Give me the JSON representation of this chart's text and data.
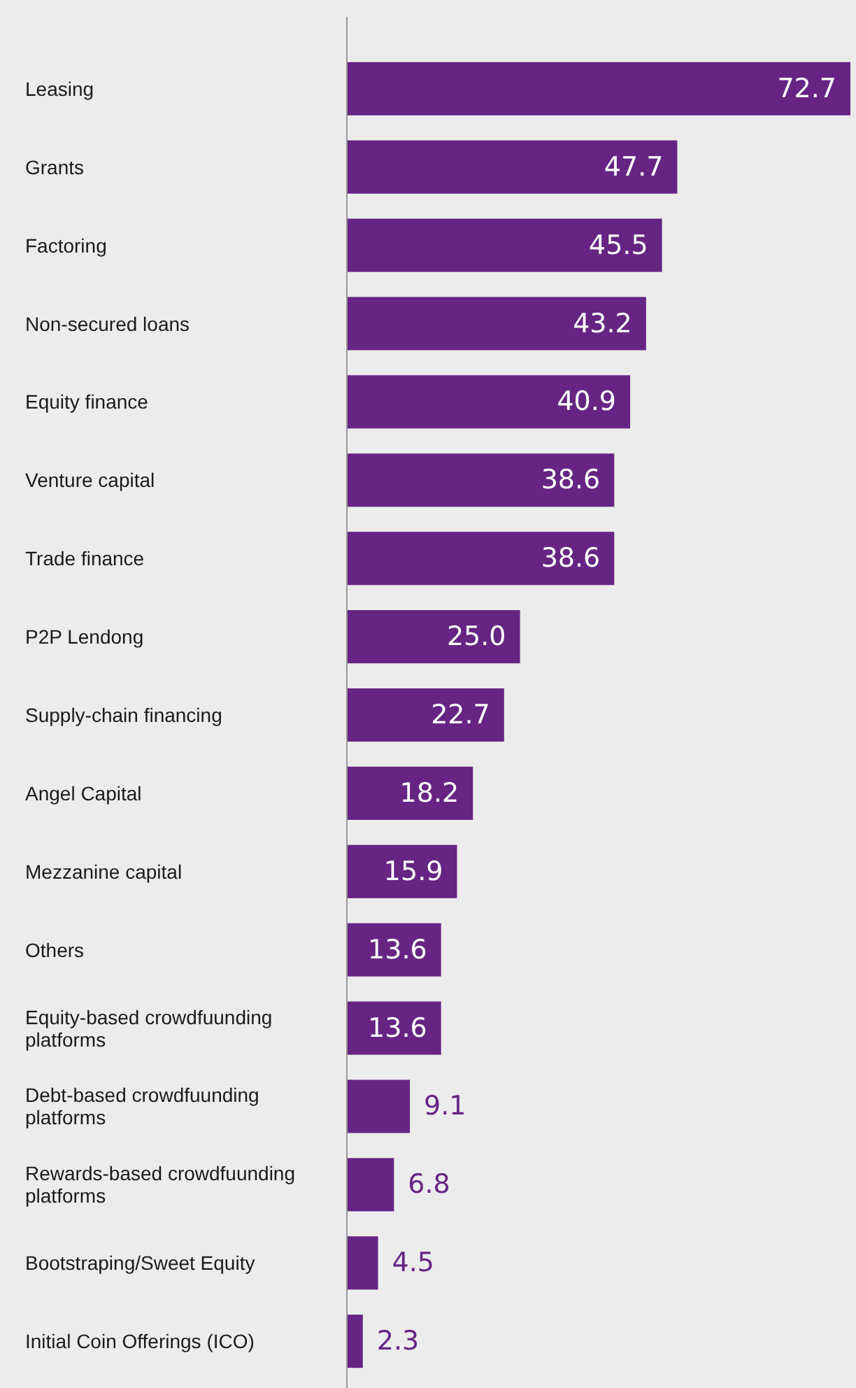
{
  "chart_data": {
    "type": "bar",
    "orientation": "horizontal",
    "categories": [
      "Leasing",
      "Grants",
      "Factoring",
      "Non-secured loans",
      "Equity finance",
      "Venture capital",
      "Trade finance",
      "P2P Lendong",
      "Supply-chain financing",
      "Angel Capital",
      "Mezzanine capital",
      "Others",
      "Equity-based crowdfuunding platforms",
      "Debt-based crowdfuunding platforms",
      "Rewards-based crowdfuunding platforms",
      "Bootstraping/Sweet Equity",
      "Initial Coin Offerings (ICO)"
    ],
    "values": [
      72.7,
      47.7,
      45.5,
      43.2,
      40.9,
      38.6,
      38.6,
      25.0,
      22.7,
      18.2,
      15.9,
      13.6,
      13.6,
      9.1,
      6.8,
      4.5,
      2.3
    ],
    "value_labels": [
      "72.7",
      "47.7",
      "45.5",
      "43.2",
      "40.9",
      "38.6",
      "38.6",
      "25.0",
      "22.7",
      "18.2",
      "15.9",
      "13.6",
      "13.6",
      "9.1",
      "6.8",
      "4.5",
      "2.3"
    ],
    "color": "#662483"
  }
}
